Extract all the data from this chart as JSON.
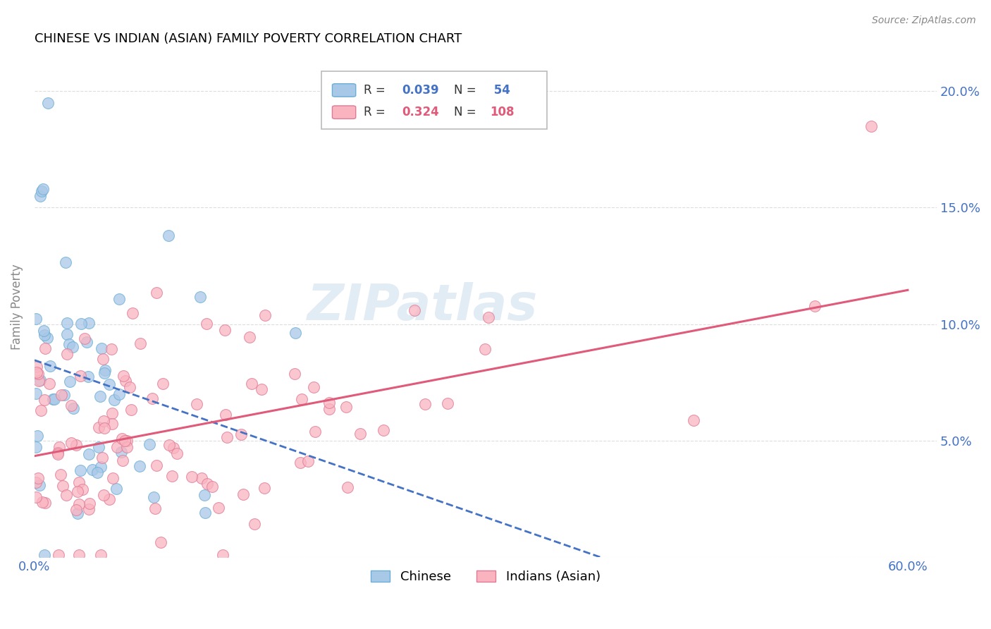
{
  "title": "CHINESE VS INDIAN (ASIAN) FAMILY POVERTY CORRELATION CHART",
  "source": "Source: ZipAtlas.com",
  "ylabel": "Family Poverty",
  "xlim": [
    0.0,
    0.62
  ],
  "ylim": [
    0.0,
    0.215
  ],
  "xtick_positions": [
    0.0,
    0.1,
    0.2,
    0.3,
    0.4,
    0.5,
    0.6
  ],
  "xtick_labels": [
    "0.0%",
    "",
    "",
    "",
    "",
    "",
    "60.0%"
  ],
  "ytick_positions": [
    0.0,
    0.05,
    0.1,
    0.15,
    0.2
  ],
  "ytick_labels_right": [
    "",
    "5.0%",
    "10.0%",
    "15.0%",
    "20.0%"
  ],
  "chinese_base_color": "#a8c8e8",
  "chinese_edge_color": "#6baed6",
  "indian_base_color": "#f9b4c0",
  "indian_edge_color": "#e07a95",
  "trend_chinese_color": "#4472c4",
  "trend_indian_color": "#e05a7a",
  "grid_color": "#dddddd",
  "watermark_color": "#b8d0e8",
  "legend_R_chinese": "0.039",
  "legend_N_chinese": "54",
  "legend_R_indian": "0.324",
  "legend_N_indian": "108",
  "axis_label_color": "#4472c4",
  "ylabel_color": "#888888"
}
